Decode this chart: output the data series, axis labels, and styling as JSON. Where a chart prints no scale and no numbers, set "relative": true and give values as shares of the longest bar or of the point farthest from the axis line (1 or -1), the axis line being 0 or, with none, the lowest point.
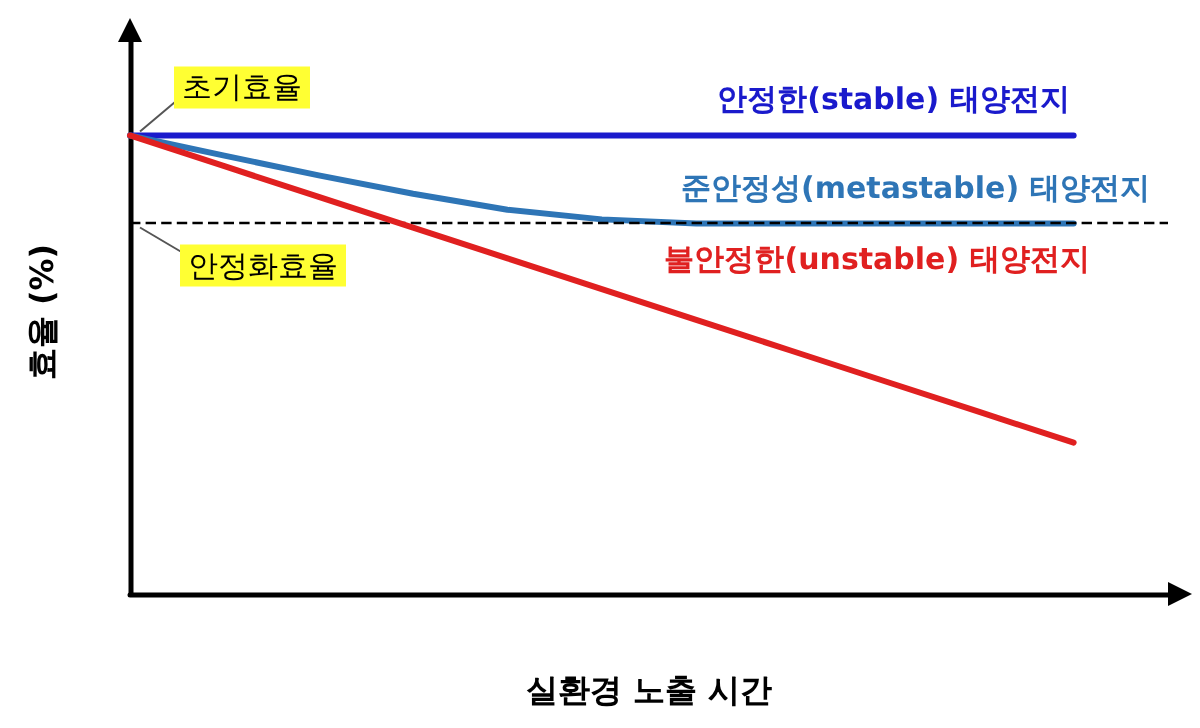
{
  "chart_data": {
    "type": "line",
    "relative": true,
    "xlabel": "실환경 노출 시간",
    "ylabel": "효율 (%)",
    "categories": [
      null,
      null,
      null,
      null,
      null,
      null,
      null,
      null,
      null,
      null,
      null,
      null
    ],
    "series": [
      {
        "name": "안정한(stable) 태양전지",
        "color": "#1a1acc",
        "values": [
          1,
          1,
          1,
          1,
          1,
          1,
          1,
          1,
          1,
          1,
          1,
          null
        ]
      },
      {
        "name": "준안정성(metastable) 태양전지",
        "color": "#2e75b6",
        "values": [
          1,
          0.956,
          0.913,
          0.873,
          0.838,
          0.817,
          0.808,
          0.808,
          0.808,
          0.808,
          0.808,
          null
        ]
      },
      {
        "name": "불안정한(unstable) 태양전지",
        "color": "#e02020",
        "values": [
          1,
          0.933,
          0.866,
          0.799,
          0.732,
          0.665,
          0.598,
          0.531,
          0.464,
          0.397,
          0.33,
          null
        ]
      }
    ],
    "ref_lines": [
      {
        "axis": "y",
        "value": 0.808,
        "color": "#000000",
        "line_style": "dashed"
      }
    ],
    "annotations": [
      "초기효율",
      "안정화효율"
    ],
    "marker": "none",
    "line_style": "solid",
    "grid": false,
    "legend": false
  }
}
